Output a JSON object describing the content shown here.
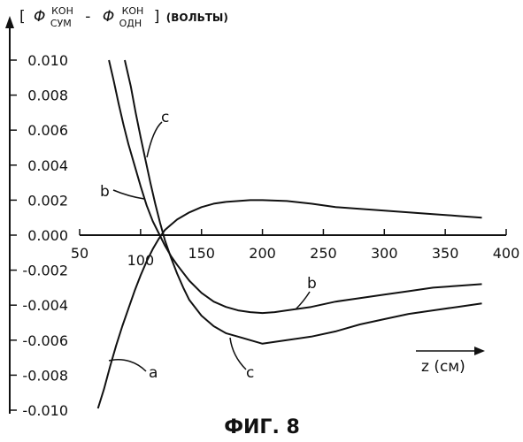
{
  "chart_data": {
    "type": "line",
    "title": "",
    "ylabel": {
      "open_bracket": "[",
      "phi1": "Φ",
      "sub1": "СУМ",
      "sup1": "КОН",
      "minus": "-",
      "phi2": "Φ",
      "sub2": "ОДН",
      "sup2": "КОН",
      "close_bracket": "]",
      "unit": "(ВОЛЬТЫ)"
    },
    "xlabel": "z (см)",
    "caption": "ФИГ. 8",
    "xlim": [
      50,
      400
    ],
    "ylim": [
      -0.01,
      0.01
    ],
    "grid": false,
    "x_ticks": [
      "50",
      "100",
      "150",
      "200",
      "250",
      "300",
      "350",
      "400"
    ],
    "y_ticks": [
      "0.010",
      "0.008",
      "0.006",
      "0.004",
      "0.002",
      "0.000",
      "-0.002",
      "-0.004",
      "-0.006",
      "-0.008",
      "-0.010"
    ],
    "series": [
      {
        "name": "a",
        "x": [
          65,
          70,
          75,
          80,
          85,
          90,
          95,
          100,
          105,
          110,
          115,
          120,
          125,
          130,
          140,
          150,
          160,
          170,
          180,
          190,
          200,
          220,
          240,
          260,
          280,
          300,
          320,
          340,
          360,
          380
        ],
        "y": [
          -0.0099,
          -0.0088,
          -0.0075,
          -0.0063,
          -0.0052,
          -0.0042,
          -0.0032,
          -0.0023,
          -0.0015,
          -0.0008,
          -0.0002,
          0.0003,
          0.0006,
          0.0009,
          0.0013,
          0.0016,
          0.0018,
          0.0019,
          0.00195,
          0.002,
          0.002,
          0.00195,
          0.0018,
          0.0016,
          0.0015,
          0.0014,
          0.0013,
          0.0012,
          0.0011,
          0.001
        ]
      },
      {
        "name": "b",
        "x": [
          74,
          78,
          82,
          86,
          90,
          95,
          100,
          105,
          110,
          115,
          120,
          125,
          130,
          140,
          150,
          160,
          170,
          180,
          190,
          200,
          210,
          220,
          240,
          260,
          280,
          300,
          320,
          340,
          360,
          380
        ],
        "y": [
          0.0101,
          0.0088,
          0.0075,
          0.0063,
          0.0052,
          0.004,
          0.0028,
          0.0017,
          0.0008,
          0.0001,
          -0.0006,
          -0.0012,
          -0.0017,
          -0.0026,
          -0.0033,
          -0.0038,
          -0.0041,
          -0.0043,
          -0.0044,
          -0.00445,
          -0.0044,
          -0.0043,
          -0.0041,
          -0.0038,
          -0.0036,
          -0.0034,
          -0.0032,
          -0.003,
          -0.0029,
          -0.0028
        ]
      },
      {
        "name": "c",
        "x": [
          87,
          92,
          96,
          100,
          104,
          108,
          112,
          116,
          120,
          125,
          130,
          135,
          140,
          150,
          160,
          170,
          180,
          190,
          200,
          210,
          220,
          240,
          260,
          280,
          300,
          320,
          340,
          360,
          380
        ],
        "y": [
          0.01,
          0.0085,
          0.007,
          0.0056,
          0.0043,
          0.003,
          0.0018,
          0.0007,
          -0.0003,
          -0.0013,
          -0.0022,
          -0.003,
          -0.0037,
          -0.0046,
          -0.0052,
          -0.0056,
          -0.0058,
          -0.006,
          -0.0062,
          -0.0061,
          -0.006,
          -0.0058,
          -0.0055,
          -0.0051,
          -0.0048,
          -0.0045,
          -0.0043,
          -0.0041,
          -0.0039
        ]
      }
    ]
  }
}
